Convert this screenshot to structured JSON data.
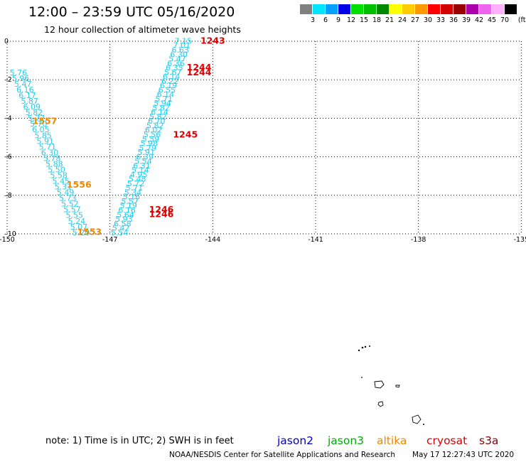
{
  "header": {
    "title": "12:00 – 23:59 UTC 05/16/2020",
    "subtitle": "12 hour collection of altimeter wave heights"
  },
  "legend": {
    "unit": "(ft)",
    "swatches": [
      {
        "label": "3",
        "color": "#808080"
      },
      {
        "label": "6",
        "color": "#00e5ff"
      },
      {
        "label": "9",
        "color": "#00a0ff"
      },
      {
        "label": "12",
        "color": "#0000e8"
      },
      {
        "label": "15",
        "color": "#00e000"
      },
      {
        "label": "18",
        "color": "#00c000"
      },
      {
        "label": "21",
        "color": "#008800"
      },
      {
        "label": "24",
        "color": "#ffff00"
      },
      {
        "label": "27",
        "color": "#ffcc00"
      },
      {
        "label": "30",
        "color": "#ff9900"
      },
      {
        "label": "33",
        "color": "#ff0000"
      },
      {
        "label": "36",
        "color": "#d00000"
      },
      {
        "label": "39",
        "color": "#990000"
      },
      {
        "label": "42",
        "color": "#aa00aa"
      },
      {
        "label": "45",
        "color": "#ee66ee"
      },
      {
        "label": "70",
        "color": "#ffb0ff"
      },
      {
        "label": "",
        "color": "#000000"
      }
    ]
  },
  "axes": {
    "lon_ticks": [
      -150,
      -147,
      -144,
      -141,
      -138,
      -135
    ],
    "lat_ticks": [
      0,
      -2,
      -4,
      -6,
      -8,
      -10
    ],
    "lon_labels": [
      "-150",
      "-147",
      "-144",
      "-141",
      "-138",
      "-135"
    ],
    "lat_labels": [
      "0",
      "–2",
      "–4",
      "–6",
      "–8",
      "–10"
    ]
  },
  "colors": {
    "wave_value": "#22ccee",
    "cryosat": "#dd0000",
    "altika": "#ee8800",
    "jason2": "#0000cc",
    "jason3": "#00aa00"
  },
  "tracks": {
    "track_a": {
      "values": [
        "7.15",
        "7.01",
        "6.63",
        "6.30",
        "5.47",
        "6.36",
        "6.35",
        "5.67",
        "6.14",
        "6.22",
        "6.19",
        "6.55",
        "6.14",
        "5.71",
        "5.94",
        "5.82",
        "6.14",
        "5.82",
        "6.70",
        "5.82",
        "6.02",
        "5.56",
        "5.59",
        "5.98",
        "5.79",
        "5.91",
        "6.39",
        "5.54",
        "6.31",
        "5.14",
        "4.95",
        "5.48",
        "5.72",
        "5.71",
        "5.34",
        "5.16",
        "5.57",
        "5.19",
        "6.16",
        "5.64",
        "5.93",
        "6.58",
        "5.42",
        "5.54"
      ]
    },
    "track_b": {
      "values": [
        "5.76",
        "5.96",
        "5.47",
        "6.16",
        "6.17",
        "5.87",
        "6.09",
        "5.82",
        "5.77",
        "5.70",
        "6.05",
        "5.85",
        "5.91",
        "5.71",
        "6.30",
        "5.78",
        "5.88",
        "5.50",
        "5.58",
        "5.45",
        "5.31",
        "5.49",
        "5.73",
        "5.52",
        "5.57",
        "5.55",
        "5.24",
        "5.07",
        "5.20"
      ]
    }
  },
  "time_labels": [
    {
      "text": "1243",
      "sat": "cryosat",
      "lon": -144.0,
      "lat": 0.02
    },
    {
      "text": "1244",
      "sat": "cryosat",
      "lon": -144.4,
      "lat": -1.37
    },
    {
      "text": "1244",
      "sat": "cryosat",
      "lon": -144.4,
      "lat": -1.62
    },
    {
      "text": "1245",
      "sat": "cryosat",
      "lon": -144.8,
      "lat": -4.85
    },
    {
      "text": "1246",
      "sat": "cryosat",
      "lon": -145.5,
      "lat": -8.75
    },
    {
      "text": "1246",
      "sat": "cryosat",
      "lon": -145.5,
      "lat": -8.98
    },
    {
      "text": "1557",
      "sat": "altika",
      "lon": -148.9,
      "lat": -4.15
    },
    {
      "text": "1556",
      "sat": "altika",
      "lon": -147.9,
      "lat": -7.45
    },
    {
      "text": "1553",
      "sat": "altika",
      "lon": -147.6,
      "lat": -9.9
    }
  ],
  "footer": {
    "note": "note:  1) Time is in UTC;  2) SWH is in feet",
    "satellites": [
      {
        "name": "jason2",
        "color": "#0000cc"
      },
      {
        "name": "jason3",
        "color": "#00aa00"
      },
      {
        "name": "altika",
        "color": "#ee8800"
      },
      {
        "name": "cryosat",
        "color": "#dd0000"
      },
      {
        "name": "s3a",
        "color": "#880000"
      }
    ],
    "credit": "NOAA/NESDIS Center for Satellite Applications and Research",
    "timestamp": "May 17 12:27:43 UTC 2020"
  }
}
